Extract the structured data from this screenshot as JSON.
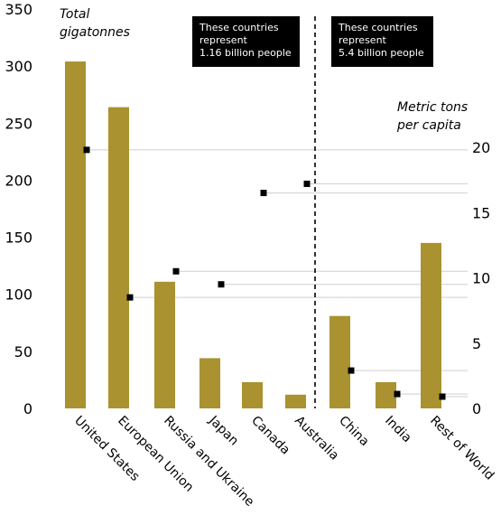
{
  "chart_data": {
    "type": "bar",
    "categories": [
      "United States",
      "European Union",
      "Russia and Ukraine",
      "Japan",
      "Canada",
      "Australia",
      "China",
      "India",
      "Rest of World"
    ],
    "series": [
      {
        "values": [
          304,
          264,
          111,
          44,
          23,
          12,
          81,
          23,
          145
        ],
        "color": "#a9922f",
        "axis": "left"
      },
      {
        "values": [
          19.8,
          8.5,
          10.5,
          9.5,
          16.5,
          17.2,
          2.9,
          1.1,
          0.9
        ],
        "marker": "square",
        "color": "#000000",
        "axis": "right"
      }
    ],
    "ylabel": "Total\ngigatonnes",
    "ylabel_right": "Metric tons\nper capita",
    "ylim": [
      0,
      350
    ],
    "y_ticks": [
      0,
      50,
      100,
      150,
      200,
      250,
      300,
      350
    ],
    "ylim_right": [
      0,
      20
    ],
    "y_ticks_right": [
      0,
      5,
      10,
      15,
      20
    ],
    "grid": false,
    "annotations": [
      {
        "text": "These countries\nrepresent\n1.16 billion people",
        "group": "left"
      },
      {
        "text": "These countries\nrepresent\n5.4 billion people",
        "group": "right"
      }
    ]
  }
}
